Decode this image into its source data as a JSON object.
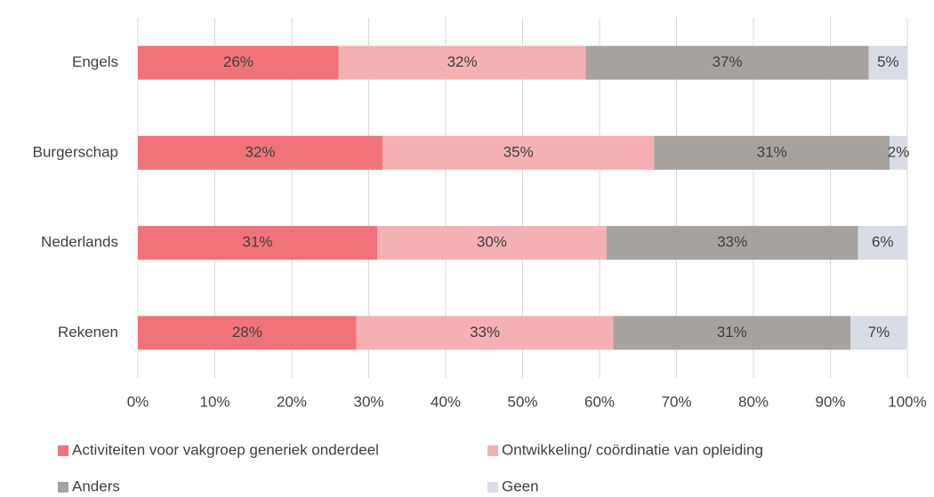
{
  "chart_data": {
    "type": "stacked_barh",
    "categories": [
      "Engels",
      "Burgerschap",
      "Nederlands",
      "Rekenen"
    ],
    "series": [
      {
        "name": "Activiteiten voor vakgroep generiek onderdeel",
        "color": "#f0737b",
        "values": [
          26.1,
          31.8,
          31.1,
          28.4
        ],
        "value_labels": [
          "26%",
          "32%",
          "31%",
          "28%"
        ]
      },
      {
        "name": "Ontwikkeling/ coördinatie van opleiding",
        "color": "#f4b0b4",
        "values": [
          32.1,
          35.3,
          29.8,
          33.4
        ],
        "value_labels": [
          "32%",
          "35%",
          "30%",
          "33%"
        ]
      },
      {
        "name": "Anders",
        "color": "#a8a29e",
        "values": [
          36.8,
          30.6,
          32.7,
          30.8
        ],
        "value_labels": [
          "37%",
          "31%",
          "33%",
          "31%"
        ]
      },
      {
        "name": "Geen",
        "color": "#d7dce5",
        "values": [
          5.0,
          2.3,
          6.4,
          7.4
        ],
        "value_labels": [
          "5%",
          "2%",
          "6%",
          "7%"
        ]
      }
    ],
    "xlim": [
      0,
      100
    ],
    "xticks": [
      {
        "value": 0,
        "label": "0%"
      },
      {
        "value": 10,
        "label": "10%"
      },
      {
        "value": 20,
        "label": "20%"
      },
      {
        "value": 30,
        "label": "30%"
      },
      {
        "value": 40,
        "label": "40%"
      },
      {
        "value": 50,
        "label": "50%"
      },
      {
        "value": 60,
        "label": "60%"
      },
      {
        "value": 70,
        "label": "70%"
      },
      {
        "value": 80,
        "label": "80%"
      },
      {
        "value": 90,
        "label": "90%"
      },
      {
        "value": 100,
        "label": "100%"
      }
    ],
    "grid": true,
    "legend": "bottom"
  }
}
